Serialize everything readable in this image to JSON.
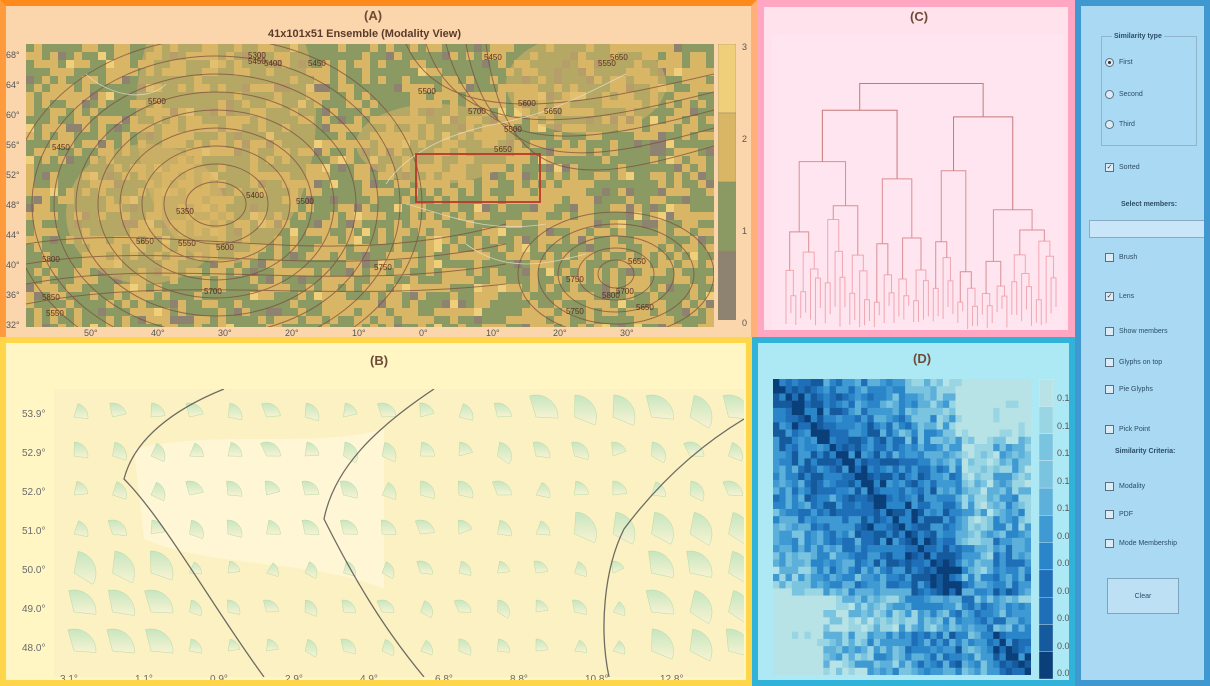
{
  "panel_a": {
    "label": "(A)",
    "title": "41x101x51 Ensemble (Modality View)",
    "y_ticks": [
      "68°",
      "64°",
      "60°",
      "56°",
      "52°",
      "48°",
      "44°",
      "40°",
      "36°",
      "32°"
    ],
    "x_ticks": [
      "50°",
      "40°",
      "30°",
      "20°",
      "10°",
      "0°",
      "10°",
      "20°",
      "30°"
    ],
    "colorbar_ticks": [
      "3",
      "2",
      "1",
      "0"
    ],
    "contour_labels": [
      "5300",
      "5400",
      "5450",
      "5450",
      "5500",
      "5450",
      "5550",
      "5600",
      "5650",
      "5700",
      "5500",
      "5450",
      "5500",
      "5650",
      "5400",
      "5500",
      "5350",
      "5650",
      "5550",
      "5600",
      "5700",
      "5650",
      "5750",
      "5650",
      "5700",
      "5750",
      "5800",
      "5750",
      "5800",
      "5650",
      "5850",
      "5550"
    ],
    "colors": {
      "low": "#8e8270",
      "mid": "#8b9a62",
      "high": "#d9b566",
      "top": "#f0cf7a"
    }
  },
  "panel_b": {
    "label": "(B)",
    "y_ticks": [
      "53.9°",
      "52.9°",
      "52.0°",
      "51.0°",
      "50.0°",
      "49.0°",
      "48.0°"
    ],
    "x_ticks": [
      "3.1°",
      "1.1°",
      "0.9°",
      "2.9°",
      "4.9°",
      "6.8°",
      "8.8°",
      "10.8°",
      "12.8°"
    ]
  },
  "panel_c": {
    "label": "(C)"
  },
  "panel_d": {
    "label": "(D)",
    "colorbar_ticks": [
      "0.1",
      "0.1",
      "0.1",
      "0.1",
      "0.1",
      "0.0",
      "0.0",
      "0.0",
      "0.0",
      "0.0",
      "0.0"
    ]
  },
  "controls": {
    "similarity_type": {
      "title": "Similarity type",
      "options": [
        "First",
        "Second",
        "Third"
      ],
      "selected": "First"
    },
    "sorted": {
      "label": "Sorted",
      "checked": true
    },
    "select_members": {
      "label": "Select members:",
      "value": ""
    },
    "brush": {
      "label": "Brush",
      "checked": false
    },
    "lens": {
      "label": "Lens",
      "checked": true
    },
    "show_members": {
      "label": "Show members",
      "checked": false
    },
    "glyphs_on_top": {
      "label": "Glyphs on top",
      "checked": false
    },
    "pie_glyphs": {
      "label": "Pie Glyphs",
      "checked": false
    },
    "pick_point": {
      "label": "Pick Point",
      "checked": false
    },
    "criteria": {
      "title": "Similarity Criteria:",
      "items": [
        {
          "label": "Modality",
          "checked": false
        },
        {
          "label": "PDF",
          "checked": false
        },
        {
          "label": "Mode Membership",
          "checked": false
        }
      ]
    },
    "clear": {
      "label": "Clear"
    }
  }
}
